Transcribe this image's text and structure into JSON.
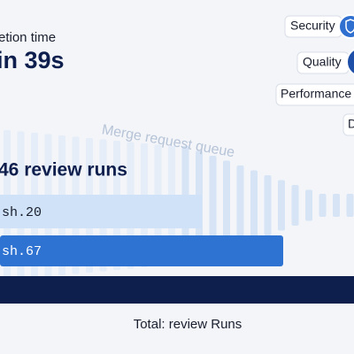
{
  "header": {
    "label": "etion time",
    "value": "in 39s"
  },
  "tags": [
    "Security",
    "Quality",
    "Performance",
    "D"
  ],
  "queue_label": "Merge request queue",
  "runs": {
    "title": "46 review runs",
    "rows": [
      "sh.20",
      "sh.67"
    ]
  },
  "footer": "Total: review Runs"
}
